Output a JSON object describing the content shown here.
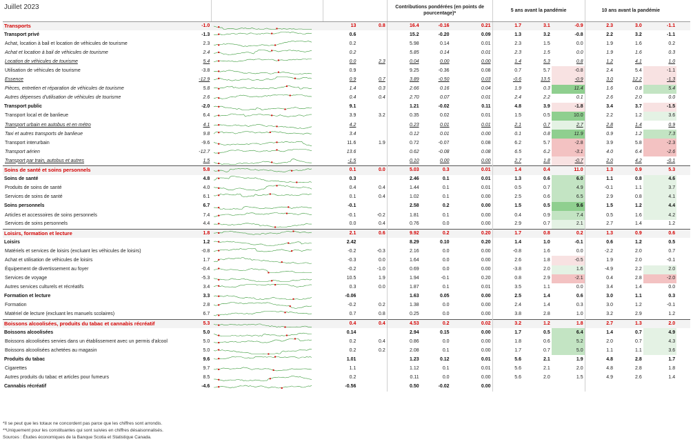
{
  "header": {
    "month": "Juillet 2023",
    "contrib": "Contributions pondérées (en points de pourcentage)*",
    "pre5": "5 ans avant la pandémie",
    "pre10": "10 ans avant la pandémie"
  },
  "colors": {
    "category_text": "#d40000",
    "spark_line": "#3a9a3a",
    "spark_marker": "#d40000"
  },
  "rows": [
    {
      "type": "cat",
      "label": "Transports",
      "v": [
        "-1.0",
        "",
        "13",
        "0.8",
        "16.4",
        "-0.16",
        "0.21",
        "1.7",
        "3.1",
        "-0.9",
        "2.3",
        "3.0",
        "-1.1"
      ],
      "h": {
        "9": "n1",
        "12": "n1"
      }
    },
    {
      "type": "grp",
      "label": "Transport privé",
      "v": [
        "-1.3",
        "",
        "0.6",
        "",
        "15.2",
        "-0.20",
        "0.09",
        "1.3",
        "3.2",
        "-0.8",
        "2.2",
        "3.2",
        "-1.1"
      ],
      "h": {}
    },
    {
      "type": "itm",
      "label": "Achat, location à bail et location de véhicules de tourisme",
      "v": [
        "2.3",
        "",
        "0.2",
        "",
        "5.98",
        "0.14",
        "0.01",
        "2.3",
        "1.5",
        "0.0",
        "1.9",
        "1.6",
        "0.2"
      ],
      "h": {}
    },
    {
      "type": "itm it",
      "label": "Achat et location à bail de véhicules de tourisme",
      "v": [
        "2.4",
        "",
        "0.2",
        "",
        "5.85",
        "0.14",
        "0.01",
        "2.3",
        "1.5",
        "0.0",
        "1.9",
        "1.6",
        "0.3"
      ],
      "h": {}
    },
    {
      "type": "itm it ul",
      "label": "Location de véhicules de tourisme",
      "v": [
        "5.4",
        "",
        "0.0",
        "2.3",
        "0.04",
        "0.00",
        "0.00",
        "1.4",
        "5.3",
        "0.8",
        "1.2",
        "4.1",
        "1.0"
      ],
      "h": {}
    },
    {
      "type": "itm",
      "label": "Utilisation de véhicules de tourisme",
      "v": [
        "-3.8",
        "",
        "0.9",
        "",
        "9.25",
        "-0.36",
        "0.08",
        "0.7",
        "5.7",
        "-0.8",
        "2.4",
        "5.4",
        "-1.1"
      ],
      "h": {
        "9": "n1",
        "12": "n1"
      }
    },
    {
      "type": "itm it ul",
      "label": "Essence",
      "v": [
        "-12.9",
        "",
        "0.9",
        "0.7",
        "3.89",
        "-0.50",
        "0.03",
        "-0.6",
        "13.5",
        "-0.9",
        "3.0",
        "12.2",
        "-1.3"
      ],
      "h": {
        "9": "n1",
        "12": "n1"
      }
    },
    {
      "type": "itm it",
      "label": "Pièces, entretien et réparation de véhicules de tourisme",
      "v": [
        "5.8",
        "",
        "1.4",
        "0.3",
        "2.66",
        "0.16",
        "0.04",
        "1.9",
        "0.3",
        "11.4",
        "1.6",
        "0.8",
        "5.4"
      ],
      "h": {
        "9": "p3",
        "12": "p2"
      }
    },
    {
      "type": "itm it",
      "label": "Autres dépenses d'utilisation de véhicules de tourisme",
      "v": [
        "2.6",
        "",
        "0.4",
        "0.4",
        "2.70",
        "0.07",
        "0.01",
        "2.4",
        "2.2",
        "0.1",
        "2.6",
        "2.0",
        "0.0"
      ],
      "h": {}
    },
    {
      "type": "grp",
      "label": "Transport public",
      "v": [
        "-2.0",
        "",
        "9.1",
        "",
        "1.21",
        "-0.02",
        "0.11",
        "4.8",
        "3.9",
        "-1.8",
        "3.4",
        "3.7",
        "-1.5"
      ],
      "h": {
        "9": "n1",
        "12": "n1"
      }
    },
    {
      "type": "itm",
      "label": "Transport local et de banlieue",
      "v": [
        "6.4",
        "",
        "3.9",
        "3.2",
        "0.35",
        "0.02",
        "0.01",
        "1.5",
        "0.5",
        "10.0",
        "2.2",
        "1.2",
        "3.6"
      ],
      "h": {
        "9": "p3",
        "12": "p1"
      }
    },
    {
      "type": "itm it ul",
      "label": "Transport urbain en autobus et en métro",
      "v": [
        "4.1",
        "",
        "4.2",
        "",
        "0.23",
        "0.01",
        "0.01",
        "2.1",
        "0.7",
        "2.7",
        "2.8",
        "1.4",
        "0.9"
      ],
      "h": {
        "9": "p1"
      }
    },
    {
      "type": "itm it",
      "label": "Taxi et autres transports de banlieue",
      "v": [
        "9.8",
        "",
        "3.4",
        "",
        "0.12",
        "0.01",
        "0.00",
        "0.1",
        "0.8",
        "11.9",
        "0.9",
        "1.2",
        "7.3"
      ],
      "h": {
        "9": "p3",
        "12": "p2"
      }
    },
    {
      "type": "itm",
      "label": "Transport interurbain",
      "v": [
        "-9.6",
        "",
        "11.6",
        "1.9",
        "0.72",
        "-0.07",
        "0.08",
        "6.2",
        "5.7",
        "-2.8",
        "3.9",
        "5.8",
        "-2.3"
      ],
      "h": {
        "9": "n2",
        "12": "n2"
      }
    },
    {
      "type": "itm it",
      "label": "Transport aérien",
      "v": [
        "-12.7",
        "",
        "13.6",
        "",
        "0.62",
        "-0.08",
        "0.08",
        "6.5",
        "6.2",
        "-3.1",
        "4.0",
        "6.4",
        "-2.6"
      ],
      "h": {
        "9": "n2",
        "12": "n2"
      }
    },
    {
      "type": "itm it ul",
      "label": "Transport par train, autobus et autres",
      "v": [
        "1.5",
        "",
        "-1.5",
        "",
        "0.10",
        "0.00",
        "0.00",
        "2.7",
        "1.8",
        "-0.7",
        "2.0",
        "4.2",
        "-0.1"
      ],
      "h": {
        "9": "n1"
      }
    },
    {
      "type": "cat",
      "label": "Soins de santé et soins personnels",
      "v": [
        "5.8",
        "",
        "0.1",
        "0.0",
        "5.03",
        "0.3",
        "0.01",
        "1.4",
        "0.4",
        "11.0",
        "1.3",
        "0.9",
        "5.3"
      ],
      "h": {
        "9": "p3",
        "12": "p2"
      }
    },
    {
      "type": "grp",
      "label": "Soins de santé",
      "v": [
        "4.8",
        "",
        "0.3",
        "",
        "2.46",
        "0.1",
        "0.01",
        "1.3",
        "0.6",
        "6.0",
        "1.1",
        "0.8",
        "4.6"
      ],
      "h": {
        "9": "p2",
        "12": "p1"
      }
    },
    {
      "type": "itm",
      "label": "Produits de soins de santé",
      "v": [
        "4.0",
        "",
        "0.4",
        "0.4",
        "1.44",
        "0.1",
        "0.01",
        "0.5",
        "0.7",
        "4.9",
        "-0.1",
        "1.1",
        "3.7"
      ],
      "h": {
        "9": "p2",
        "12": "p1"
      }
    },
    {
      "type": "itm",
      "label": "Services de soins de santé",
      "v": [
        "6.1",
        "",
        "0.1",
        "0.4",
        "1.02",
        "0.1",
        "0.00",
        "2.5",
        "0.6",
        "6.5",
        "2.9",
        "0.8",
        "4.1"
      ],
      "h": {
        "9": "p2",
        "12": "p1"
      }
    },
    {
      "type": "grp",
      "label": "Soins personnels",
      "v": [
        "6.7",
        "",
        "-0.1",
        "",
        "2.58",
        "0.2",
        "0.00",
        "1.5",
        "0.5",
        "9.6",
        "1.5",
        "1.2",
        "4.4"
      ],
      "h": {
        "9": "p3",
        "12": "p1"
      }
    },
    {
      "type": "itm",
      "label": "Articles et accessoires de soins personnels",
      "v": [
        "7.4",
        "",
        "-0.1",
        "-0.2",
        "1.81",
        "0.1",
        "0.00",
        "0.4",
        "0.9",
        "7.4",
        "0.5",
        "1.6",
        "4.2"
      ],
      "h": {
        "9": "p2",
        "12": "p1"
      }
    },
    {
      "type": "itm",
      "label": "Services de soins personnels",
      "v": [
        "4.4",
        "",
        "0.0",
        "0.4",
        "0.76",
        "0.0",
        "0.00",
        "2.9",
        "0.7",
        "2.1",
        "2.7",
        "1.4",
        "1.2"
      ],
      "h": {
        "9": "p1"
      }
    },
    {
      "type": "cat",
      "label": "Loisirs, formation et lecture",
      "v": [
        "1.8",
        "",
        "2.1",
        "0.6",
        "9.92",
        "0.2",
        "0.20",
        "1.7",
        "0.8",
        "0.2",
        "1.3",
        "0.9",
        "0.6"
      ],
      "h": {}
    },
    {
      "type": "grp",
      "label": "Loisirs",
      "v": [
        "1.2",
        "",
        "2.42",
        "",
        "8.29",
        "0.10",
        "0.20",
        "1.4",
        "1.0",
        "-0.1",
        "0.6",
        "1.2",
        "0.5"
      ],
      "h": {}
    },
    {
      "type": "itm",
      "label": "Matériels et services de loisirs (excluant les véhicules de loisirs)",
      "v": [
        "-0.8",
        "",
        "-0.2",
        "-0.3",
        "2.16",
        "0.0",
        "0.00",
        "-0.8",
        "1.6",
        "0.0",
        "-2.2",
        "2.0",
        "0.7"
      ],
      "h": {}
    },
    {
      "type": "itm",
      "label": "Achat et utilisation de véhicules de loisirs",
      "v": [
        "1.7",
        "",
        "-0.3",
        "0.0",
        "1.64",
        "0.0",
        "0.00",
        "2.6",
        "1.8",
        "-0.5",
        "1.9",
        "2.0",
        "-0.1"
      ],
      "h": {
        "9": "n1"
      }
    },
    {
      "type": "itm",
      "label": "Équipement de divertissement au foyer",
      "v": [
        "-0.4",
        "",
        "-0.2",
        "-1.0",
        "0.69",
        "0.0",
        "0.00",
        "-3.8",
        "2.0",
        "1.6",
        "-4.9",
        "2.2",
        "2.0"
      ],
      "h": {
        "9": "p1",
        "12": "p1"
      }
    },
    {
      "type": "itm",
      "label": "Services de voyage",
      "v": [
        "-5.3",
        "",
        "10.5",
        "1.9",
        "1.94",
        "-0.1",
        "0.20",
        "0.8",
        "2.9",
        "-2.1",
        "0.4",
        "2.8",
        "-2.0"
      ],
      "h": {
        "9": "n2",
        "12": "n2"
      }
    },
    {
      "type": "itm",
      "label": "Autres services culturels et récréatifs",
      "v": [
        "3.4",
        "",
        "0.3",
        "0.0",
        "1.87",
        "0.1",
        "0.01",
        "3.5",
        "1.1",
        "0.0",
        "3.4",
        "1.4",
        "0.0"
      ],
      "h": {}
    },
    {
      "type": "grp",
      "label": "Formation et lecture",
      "v": [
        "3.3",
        "",
        "-0.06",
        "",
        "1.63",
        "0.05",
        "0.00",
        "2.5",
        "1.4",
        "0.6",
        "3.0",
        "1.1",
        "0.3"
      ],
      "h": {}
    },
    {
      "type": "itm",
      "label": "Formation",
      "v": [
        "2.8",
        "",
        "-0.2",
        "0.2",
        "1.38",
        "0.0",
        "0.00",
        "2.4",
        "1.4",
        "0.3",
        "3.0",
        "1.2",
        "-0.1"
      ],
      "h": {}
    },
    {
      "type": "itm",
      "label": "Matériel de lecture (excluant les manuels scolaires)",
      "v": [
        "6.7",
        "",
        "0.7",
        "0.8",
        "0.25",
        "0.0",
        "0.00",
        "3.8",
        "2.8",
        "1.0",
        "3.2",
        "2.9",
        "1.2"
      ],
      "h": {}
    },
    {
      "type": "cat",
      "label": "Boissons alcoolisées, produits du tabac et cannabis récréatif",
      "v": [
        "5.3",
        "",
        "0.4",
        "0.4",
        "4.53",
        "0.2",
        "0.02",
        "3.2",
        "1.2",
        "1.8",
        "2.7",
        "1.3",
        "2.0"
      ],
      "h": {
        "9": "p1",
        "12": "p1"
      }
    },
    {
      "type": "grp",
      "label": "Boissons alcoolisées",
      "v": [
        "5.0",
        "",
        "0.14",
        "",
        "2.94",
        "0.15",
        "0.00",
        "1.7",
        "0.5",
        "6.4",
        "1.4",
        "0.7",
        "4.9"
      ],
      "h": {
        "9": "p2",
        "12": "p1"
      }
    },
    {
      "type": "itm",
      "label": "Boissons alcoolisées servies dans un établissement avec un permis d'alcool",
      "v": [
        "5.0",
        "",
        "0.2",
        "0.4",
        "0.86",
        "0.0",
        "0.00",
        "1.8",
        "0.6",
        "5.2",
        "2.0",
        "0.7",
        "4.3"
      ],
      "h": {
        "9": "p2",
        "12": "p1"
      }
    },
    {
      "type": "itm",
      "label": "Boissons alcoolisées achetées au magasin",
      "v": [
        "5.0",
        "",
        "0.2",
        "0.2",
        "2.08",
        "0.1",
        "0.00",
        "1.7",
        "0.7",
        "5.0",
        "1.1",
        "1.1",
        "3.6"
      ],
      "h": {
        "9": "p2",
        "12": "p1"
      }
    },
    {
      "type": "grp",
      "label": "Produits du tabac",
      "v": [
        "9.6",
        "",
        "1.01",
        "",
        "1.23",
        "0.12",
        "0.01",
        "5.6",
        "2.1",
        "1.9",
        "4.8",
        "2.8",
        "1.7"
      ],
      "h": {}
    },
    {
      "type": "itm",
      "label": "Cigarettes",
      "v": [
        "9.7",
        "",
        "1.1",
        "",
        "1.12",
        "0.1",
        "0.01",
        "5.6",
        "2.1",
        "2.0",
        "4.8",
        "2.8",
        "1.8"
      ],
      "h": {}
    },
    {
      "type": "itm",
      "label": "Autres produits du tabac et articles pour fumeurs",
      "v": [
        "8.5",
        "",
        "0.2",
        "",
        "0.11",
        "0.0",
        "0.00",
        "5.6",
        "2.0",
        "1.5",
        "4.9",
        "2.6",
        "1.4"
      ],
      "h": {}
    },
    {
      "type": "grp",
      "label": "Cannabis récréatif",
      "v": [
        "-4.6",
        "",
        "-0.56",
        "",
        "0.50",
        "-0.02",
        "0.00",
        "",
        "",
        "",
        "",
        "",
        ""
      ],
      "h": {}
    }
  ],
  "notes": [
    "*Il se peut que les totaux ne concordent pas parce que les chiffres sont arrondis.",
    "**Uniquement pour les constituantes qui sont suivies en chiffres désaisonnalisés.",
    "Sources : Études économiques de la Banque Scotia et Statistique Canada."
  ]
}
